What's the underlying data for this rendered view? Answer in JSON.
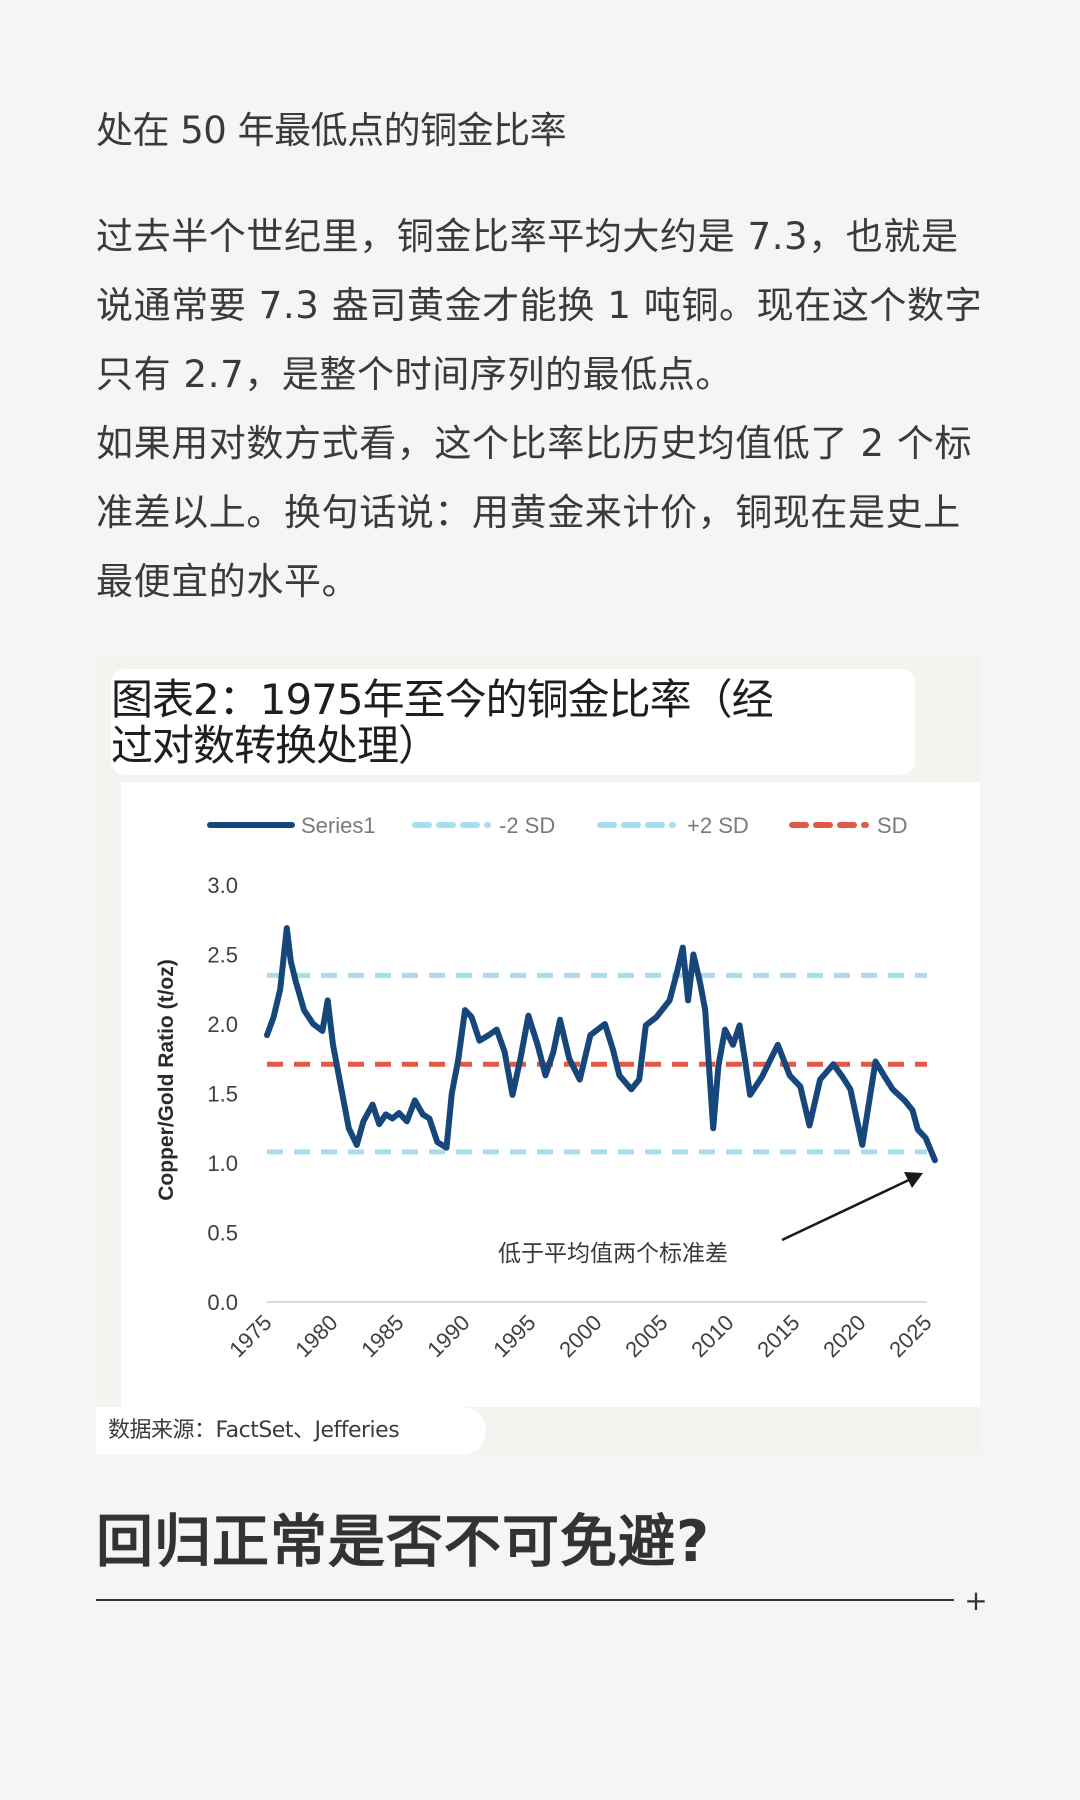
{
  "article": {
    "subtitle": "处在 50 年最低点的铜金比率",
    "paragraphs": [
      "过去半个世纪里，铜金比率平均大约是 7.3，也就是说通常要 7.3 盎司黄金才能换 1 吨铜。现在这个数字只有 2.7，是整个时间序列的最低点。",
      "如果用对数方式看，这个比率比历史均值低了 2 个标准差以上。换句话说：用黄金来计价，铜现在是史上最便宜的水平。"
    ],
    "section_heading": "回归正常是否不可免避?",
    "expand_icon": "plus-icon",
    "expand_symbol": "+"
  },
  "figure": {
    "title_line1": "图表2：1975年至今的铜金比率（经",
    "title_line2": "过对数转换处理）",
    "source": "数据来源：FactSet、Jefferies",
    "annotation": "低于平均值两个标准差"
  },
  "colors": {
    "series": "#17477a",
    "sd_band": "#a8dcef",
    "mean": "#e05a47",
    "axis": "#d9d9d9",
    "tick_text": "#404040"
  },
  "chart_data": {
    "type": "line",
    "title": "图表2：1975年至今的铜金比率（经过对数转换处理）",
    "xlabel": "",
    "ylabel": "Copper/Gold Ratio (t/oz)",
    "xlim": [
      1975,
      2025
    ],
    "ylim": [
      0,
      3.0
    ],
    "y_ticks": [
      "0.0",
      "0.5",
      "1.0",
      "1.5",
      "2.0",
      "2.5",
      "3.0"
    ],
    "x_ticks": [
      "1975",
      "1980",
      "1985",
      "1990",
      "1995",
      "2000",
      "2005",
      "2010",
      "2015",
      "2020",
      "2025"
    ],
    "grid": false,
    "legend_position": "top",
    "legend": [
      "Series1",
      "-2 SD",
      "+2 SD",
      "SD"
    ],
    "series": [
      {
        "name": "Series1",
        "style": "solid",
        "x": [
          1975.0,
          1975.5,
          1976.0,
          1976.5,
          1976.8,
          1977.2,
          1977.8,
          1978.5,
          1979.2,
          1979.6,
          1980.0,
          1980.6,
          1981.2,
          1981.8,
          1982.3,
          1983.0,
          1983.5,
          1984.0,
          1984.5,
          1985.0,
          1985.6,
          1986.2,
          1986.8,
          1987.3,
          1987.9,
          1988.6,
          1989.0,
          1989.5,
          1990.0,
          1990.5,
          1991.1,
          1991.8,
          1992.4,
          1993.0,
          1993.6,
          1994.2,
          1994.8,
          1995.5,
          1996.1,
          1996.7,
          1997.2,
          1997.9,
          1998.7,
          1999.5,
          2000.6,
          2001.2,
          2001.7,
          2002.6,
          2003.2,
          2003.7,
          2004.5,
          2005.5,
          2006.0,
          2006.5,
          2006.9,
          2007.3,
          2007.8,
          2008.2,
          2008.8,
          2009.2,
          2009.7,
          2010.3,
          2010.8,
          2011.2,
          2011.6,
          2012.5,
          2013.7,
          2014.6,
          2015.4,
          2016.1,
          2016.9,
          2017.9,
          2018.6,
          2019.2,
          2020.1,
          2021.1,
          2021.8,
          2022.4,
          2023.3,
          2023.9,
          2024.3,
          2024.9,
          2025.6
        ],
        "values": [
          1.92,
          2.05,
          2.25,
          2.69,
          2.45,
          2.3,
          2.1,
          2.0,
          1.95,
          2.17,
          1.85,
          1.55,
          1.25,
          1.13,
          1.3,
          1.42,
          1.28,
          1.35,
          1.32,
          1.36,
          1.3,
          1.45,
          1.35,
          1.32,
          1.15,
          1.11,
          1.5,
          1.75,
          2.1,
          2.05,
          1.88,
          1.92,
          1.96,
          1.8,
          1.49,
          1.75,
          2.06,
          1.85,
          1.63,
          1.8,
          2.03,
          1.75,
          1.6,
          1.92,
          2.0,
          1.82,
          1.63,
          1.53,
          1.6,
          1.99,
          2.05,
          2.17,
          2.35,
          2.55,
          2.17,
          2.5,
          2.3,
          2.1,
          1.25,
          1.7,
          1.96,
          1.85,
          1.99,
          1.75,
          1.49,
          1.62,
          1.85,
          1.63,
          1.55,
          1.27,
          1.6,
          1.71,
          1.62,
          1.53,
          1.13,
          1.73,
          1.62,
          1.53,
          1.45,
          1.38,
          1.24,
          1.18,
          1.02
        ]
      },
      {
        "name": "-2 SD",
        "style": "dashed",
        "constant": 1.08
      },
      {
        "name": "+2 SD",
        "style": "dashed",
        "constant": 2.35
      },
      {
        "name": "SD",
        "style": "dashed",
        "constant": 1.71
      }
    ],
    "annotations": [
      {
        "text": "低于平均值两个标准差",
        "arrow_to": [
          2025.2,
          1.05
        ]
      }
    ]
  }
}
